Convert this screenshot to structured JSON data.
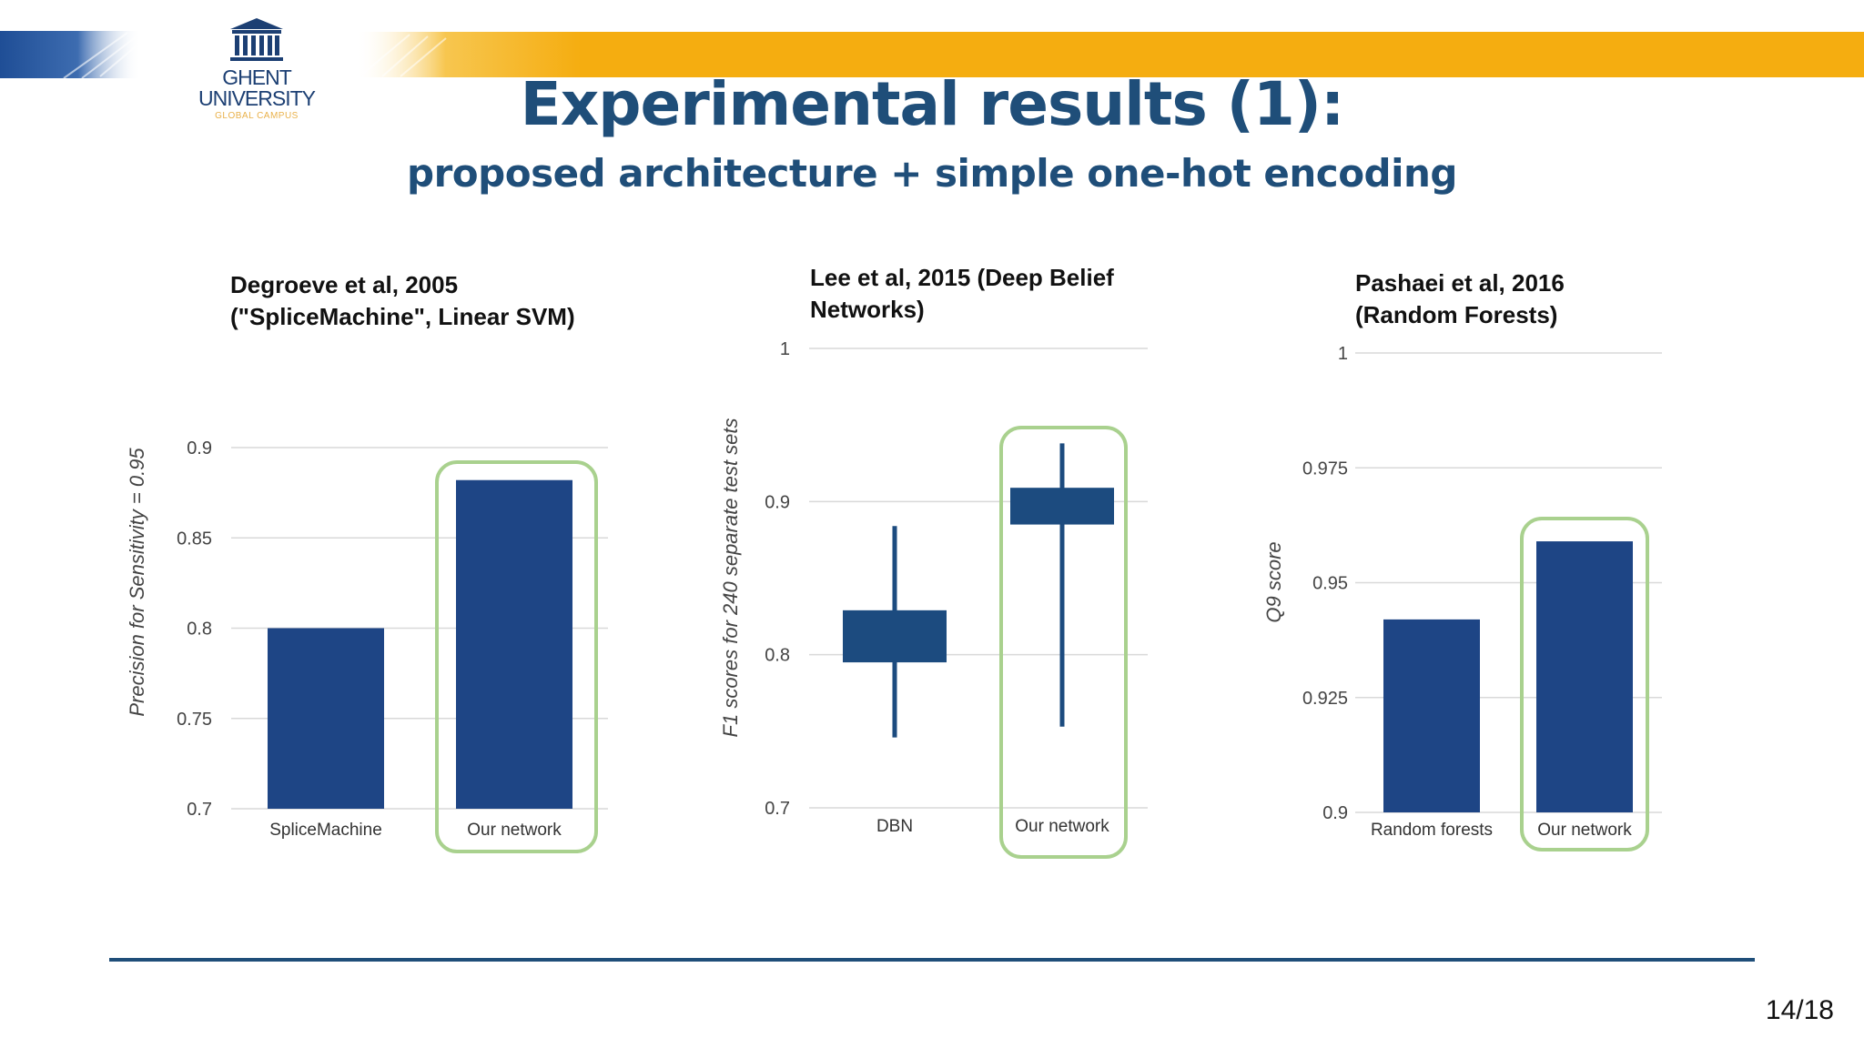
{
  "slide": {
    "title": "Experimental results (1):",
    "subtitle": "proposed architecture + simple one-hot encoding",
    "page": "14/18",
    "logo": {
      "line1": "GHENT",
      "line2": "UNIVERSITY",
      "line3": "GLOBAL CAMPUS"
    }
  },
  "colors": {
    "bar": "#1e4585",
    "box": "#1c4b7f",
    "highlight": "#a9d18e",
    "grid": "#d9d9d9",
    "title": "#1f4e79",
    "accent": "#f5ad10"
  },
  "chart_data": [
    {
      "type": "bar",
      "title_lines": [
        "Degroeve et al, 2005",
        "(\"SpliceMachine\", Linear SVM)"
      ],
      "ylabel": "Precision for Sensitivity = 0.95",
      "ylim": [
        0.7,
        0.9
      ],
      "yticks": [
        0.7,
        0.75,
        0.8,
        0.85,
        0.9
      ],
      "categories": [
        "SpliceMachine",
        "Our network"
      ],
      "values": [
        0.8,
        0.882
      ],
      "highlight": "Our network"
    },
    {
      "type": "box",
      "title_lines": [
        "Lee et al, 2015 (Deep Belief",
        "Networks)"
      ],
      "ylabel": "F1 scores for 240 separate test sets",
      "ylim": [
        0.7,
        1.0
      ],
      "yticks": [
        0.7,
        0.8,
        0.9,
        1
      ],
      "categories": [
        "DBN",
        "Our network"
      ],
      "boxes": [
        {
          "min": 0.746,
          "q1": 0.795,
          "q3": 0.829,
          "max": 0.884
        },
        {
          "min": 0.753,
          "q1": 0.885,
          "q3": 0.909,
          "max": 0.938
        }
      ],
      "highlight": "Our network"
    },
    {
      "type": "bar",
      "title_lines": [
        "Pashaei et al, 2016",
        "(Random Forests)"
      ],
      "ylabel": "Q9 score",
      "ylim": [
        0.9,
        1.0
      ],
      "yticks": [
        0.9,
        0.925,
        0.95,
        0.975,
        1
      ],
      "categories": [
        "Random forests",
        "Our network"
      ],
      "values": [
        0.942,
        0.959
      ],
      "highlight": "Our network"
    }
  ]
}
